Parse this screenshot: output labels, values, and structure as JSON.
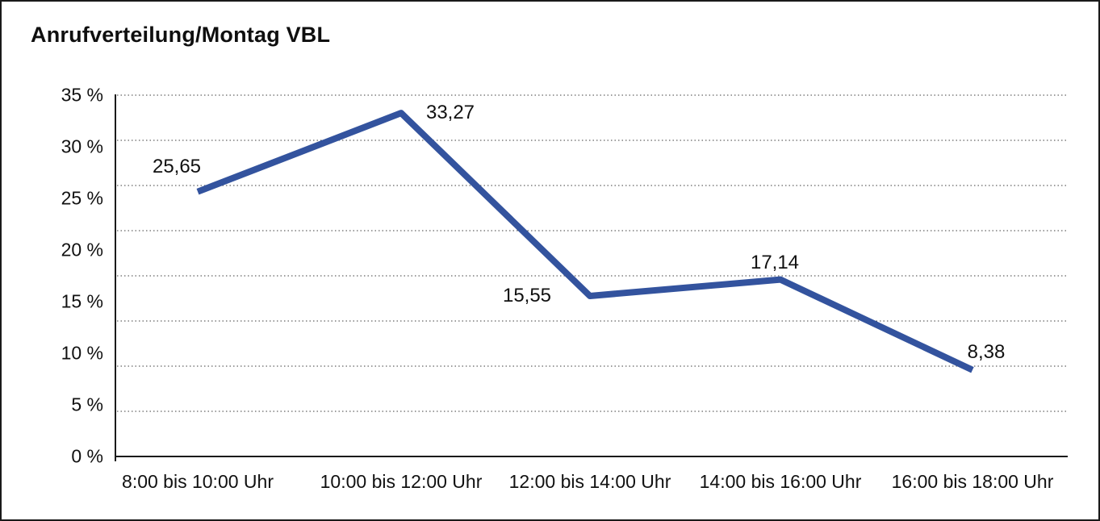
{
  "window": {
    "background": "#ffffff",
    "border_color": "#1a1a1a"
  },
  "chart_data": {
    "type": "line",
    "title": "Anrufverteilung/Montag VBL",
    "categories": [
      "8:00 bis 10:00 Uhr",
      "10:00 bis 12:00 Uhr",
      "12:00 bis 14:00 Uhr",
      "14:00 bis 16:00 Uhr",
      "16:00 bis 18:00 Uhr"
    ],
    "values": [
      25.65,
      33.27,
      15.55,
      17.14,
      8.38
    ],
    "value_labels": [
      "25,65",
      "33,27",
      "15,55",
      "17,14",
      "8,38"
    ],
    "y_tick_values": [
      35,
      30,
      25,
      20,
      15,
      10,
      5,
      0
    ],
    "y_tick_labels": [
      "35 %",
      "30 %",
      "25 %",
      "20 %",
      "15 %",
      "10 %",
      "5 %",
      "0 %"
    ],
    "ylim": [
      0,
      35
    ],
    "xlabel": "",
    "ylabel": "",
    "legend": null,
    "grid": "horizontal-dotted",
    "gridline_count": 9,
    "line_color": "#33539E",
    "axis_color": "#1a1a1a",
    "grid_color": "#3c3c3c",
    "text_color": "#111111"
  }
}
